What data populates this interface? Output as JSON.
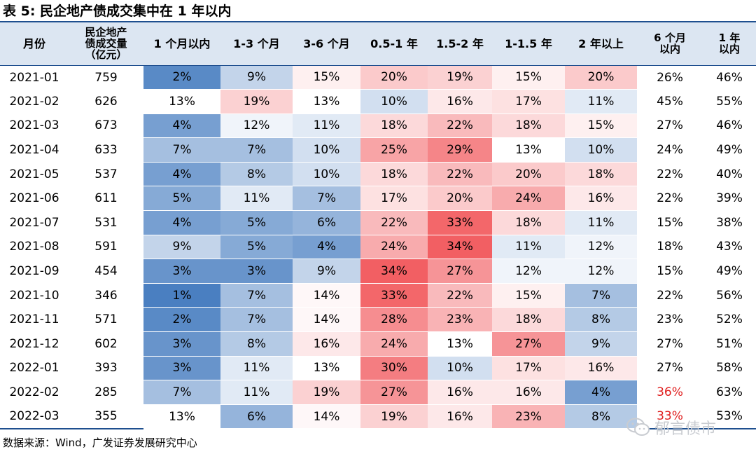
{
  "title": "表 5:  民企地产债成交集中在 1 年以内",
  "source": "数据来源：Wind，广发证券发展研究中心",
  "watermark": "郁言债市",
  "headers": {
    "month": "月份",
    "volume": [
      "民企地产",
      "债成交量",
      "（亿元）"
    ],
    "b1": "1 个月以内",
    "b2": "1-3 个月",
    "b3": "3-6 个月",
    "b4": "0.5-1 年",
    "b5": "1.5-2 年",
    "b6": "1-1.5 年",
    "b7": "2 年以上",
    "c1": [
      "6 个月",
      "以内"
    ],
    "c2": [
      "1 年",
      "以内"
    ]
  },
  "colors": {
    "header_bg": "#dce6f2",
    "rule": "#1e4f8f",
    "low": "#4a7fc1",
    "mid": "#ffffff",
    "high": "#f25f63",
    "highlight_text": "#e02020"
  },
  "rows": [
    {
      "month": "2021-01",
      "volume": "759",
      "b": [
        "2%",
        "9%",
        "15%",
        "20%",
        "19%",
        "15%",
        "20%"
      ],
      "c6": "26%",
      "c12": "46%"
    },
    {
      "month": "2021-02",
      "volume": "626",
      "b": [
        "13%",
        "19%",
        "13%",
        "10%",
        "16%",
        "17%",
        "11%"
      ],
      "c6": "45%",
      "c12": "55%"
    },
    {
      "month": "2021-03",
      "volume": "673",
      "b": [
        "4%",
        "12%",
        "11%",
        "18%",
        "22%",
        "18%",
        "15%"
      ],
      "c6": "27%",
      "c12": "46%"
    },
    {
      "month": "2021-04",
      "volume": "633",
      "b": [
        "7%",
        "7%",
        "10%",
        "25%",
        "29%",
        "13%",
        "10%"
      ],
      "c6": "24%",
      "c12": "49%"
    },
    {
      "month": "2021-05",
      "volume": "537",
      "b": [
        "4%",
        "8%",
        "10%",
        "18%",
        "22%",
        "20%",
        "18%"
      ],
      "c6": "22%",
      "c12": "40%"
    },
    {
      "month": "2021-06",
      "volume": "611",
      "b": [
        "5%",
        "11%",
        "7%",
        "17%",
        "20%",
        "24%",
        "16%"
      ],
      "c6": "22%",
      "c12": "39%"
    },
    {
      "month": "2021-07",
      "volume": "531",
      "b": [
        "4%",
        "5%",
        "6%",
        "22%",
        "33%",
        "18%",
        "11%"
      ],
      "c6": "15%",
      "c12": "38%"
    },
    {
      "month": "2021-08",
      "volume": "591",
      "b": [
        "9%",
        "5%",
        "4%",
        "24%",
        "34%",
        "11%",
        "12%"
      ],
      "c6": "18%",
      "c12": "43%"
    },
    {
      "month": "2021-09",
      "volume": "454",
      "b": [
        "3%",
        "3%",
        "9%",
        "34%",
        "27%",
        "12%",
        "12%"
      ],
      "c6": "15%",
      "c12": "49%"
    },
    {
      "month": "2021-10",
      "volume": "346",
      "b": [
        "1%",
        "7%",
        "14%",
        "33%",
        "22%",
        "15%",
        "7%"
      ],
      "c6": "22%",
      "c12": "56%"
    },
    {
      "month": "2021-11",
      "volume": "571",
      "b": [
        "2%",
        "7%",
        "14%",
        "28%",
        "23%",
        "18%",
        "8%"
      ],
      "c6": "23%",
      "c12": "52%"
    },
    {
      "month": "2021-12",
      "volume": "602",
      "b": [
        "3%",
        "8%",
        "16%",
        "24%",
        "13%",
        "27%",
        "9%"
      ],
      "c6": "27%",
      "c12": "51%"
    },
    {
      "month": "2022-01",
      "volume": "393",
      "b": [
        "3%",
        "11%",
        "13%",
        "30%",
        "10%",
        "17%",
        "16%"
      ],
      "c6": "27%",
      "c12": "58%"
    },
    {
      "month": "2022-02",
      "volume": "285",
      "b": [
        "7%",
        "11%",
        "19%",
        "27%",
        "16%",
        "16%",
        "4%"
      ],
      "c6": "36%",
      "c12": "63%",
      "c6_highlight": true
    },
    {
      "month": "2022-03",
      "volume": "355",
      "b": [
        "13%",
        "6%",
        "14%",
        "19%",
        "16%",
        "23%",
        "8%"
      ],
      "c6": "33%",
      "c12": "53%",
      "c6_highlight": true
    }
  ]
}
